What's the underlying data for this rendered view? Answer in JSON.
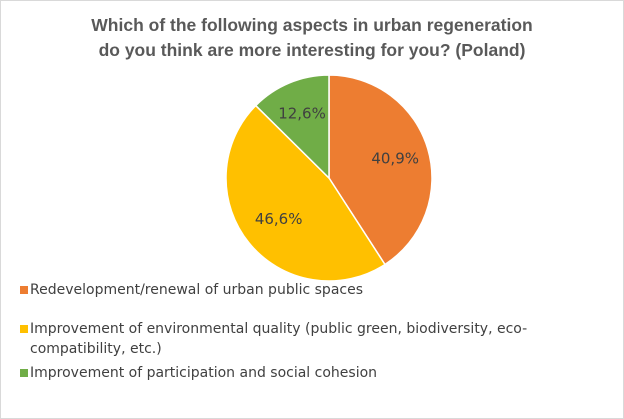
{
  "chart_data": {
    "type": "pie",
    "title": [
      "Which of the following aspects in urban regeneration",
      "do you think are more interesting for you? (Poland)"
    ],
    "slices": [
      {
        "label": "Redevelopment/renewal of urban public spaces",
        "value": 40.9,
        "display": "40,9%",
        "color": "#ed7d31"
      },
      {
        "label": "Improvement of environmental quality (public green, biodiversity, eco-compatibility, etc.)",
        "value": 46.6,
        "display": "46,6%",
        "color": "#ffc000"
      },
      {
        "label": "Improvement of participation and social cohesion",
        "value": 12.6,
        "display": "12,6%",
        "color": "#70ad47"
      }
    ],
    "legend_position": "bottom-left"
  }
}
